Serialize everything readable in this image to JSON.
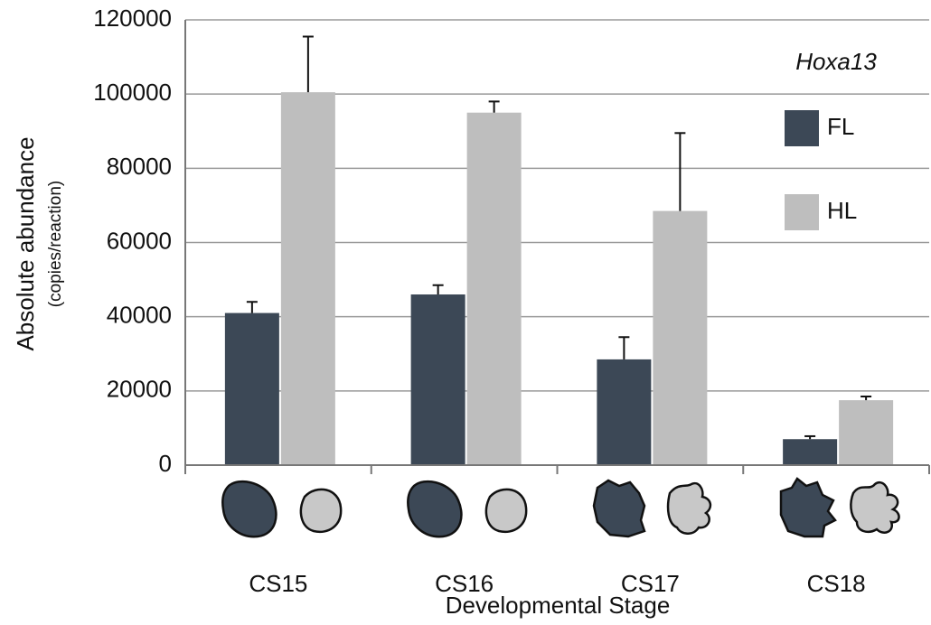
{
  "chart_data": {
    "type": "bar",
    "y_label": "Absolute abundance",
    "y_sublabel": "(copies/reaction)",
    "x_label": "Developmental Stage",
    "legend_title": "Hoxa13",
    "categories": [
      "CS15",
      "CS16",
      "CS17",
      "CS18"
    ],
    "series": [
      {
        "name": "FL",
        "color": "#3c4856",
        "values": [
          41000,
          46000,
          28500,
          7000
        ],
        "errors": [
          3000,
          2500,
          6000,
          800
        ]
      },
      {
        "name": "HL",
        "color": "#bebebe",
        "values": [
          100500,
          95000,
          68500,
          17500
        ],
        "errors": [
          15000,
          3000,
          21000,
          1000
        ]
      }
    ],
    "ylim": [
      0,
      120000
    ],
    "yticks": [
      0,
      20000,
      40000,
      60000,
      80000,
      100000,
      120000
    ],
    "grid": true
  }
}
